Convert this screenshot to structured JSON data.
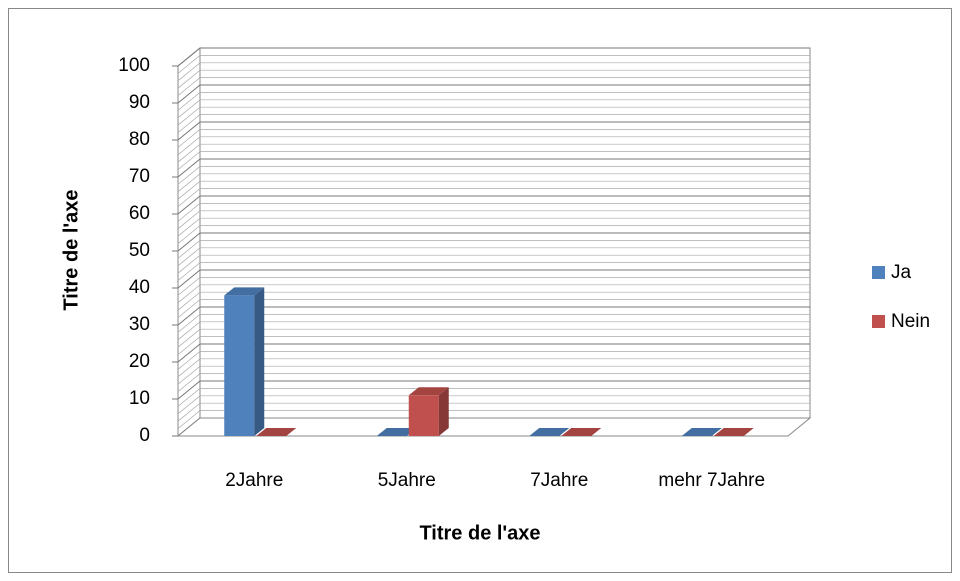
{
  "chart_data": {
    "type": "bar3d",
    "categories": [
      "2Jahre",
      "5Jahre",
      "7Jahre",
      "mehr 7Jahre"
    ],
    "series": [
      {
        "name": "Ja",
        "color": "#4f81bd",
        "values": [
          38,
          0,
          0,
          0
        ]
      },
      {
        "name": "Nein",
        "color": "#c0504d",
        "values": [
          0,
          11,
          0,
          0
        ]
      }
    ],
    "xlabel": "Titre de l'axe",
    "ylabel": "Titre de l'axe",
    "ylim": [
      0,
      100
    ],
    "yticks": [
      0,
      10,
      20,
      30,
      40,
      50,
      60,
      70,
      80,
      90,
      100
    ],
    "grid": true,
    "legend": "right"
  }
}
